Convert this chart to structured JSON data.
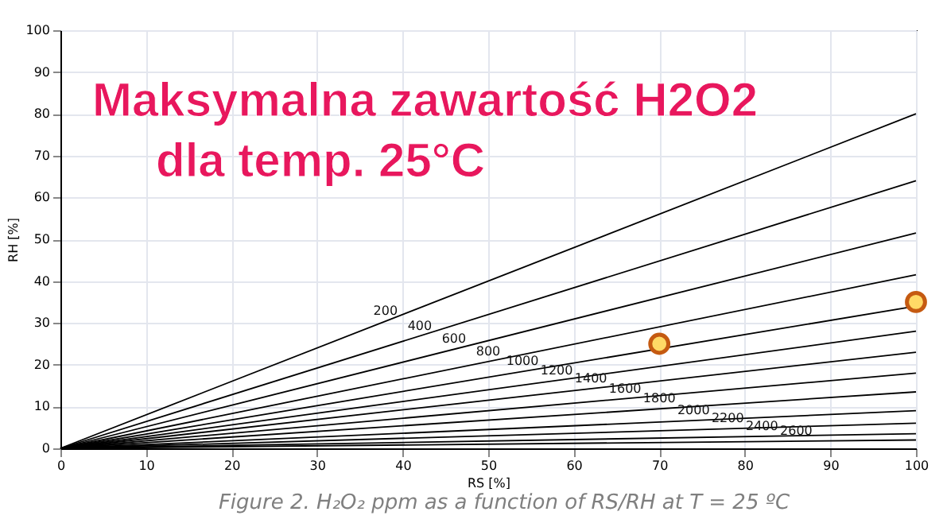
{
  "chart_data": {
    "type": "line",
    "title": "Maksymalna zawartość H2O2",
    "subtitle": "dla temp. 25°C",
    "xlabel": "RS [%]",
    "ylabel": "RH [%]",
    "annotations": [
      "Figure 2. H₂O₂ ppm as a function of RS/RH at T = 25 ºC"
    ],
    "xlim": [
      0,
      100
    ],
    "ylim": [
      0,
      100
    ],
    "xticks": [
      0,
      10,
      20,
      30,
      40,
      50,
      60,
      70,
      80,
      90,
      100
    ],
    "yticks": [
      0,
      10,
      20,
      30,
      40,
      50,
      60,
      70,
      80,
      90,
      100
    ],
    "grid": true,
    "line_style": "solid",
    "marker": "none",
    "series": [
      {
        "name": "200",
        "color": "#000000",
        "x": [
          0,
          100
        ],
        "values": [
          0,
          80
        ]
      },
      {
        "name": "400",
        "color": "#000000",
        "x": [
          0,
          100
        ],
        "values": [
          0,
          64
        ]
      },
      {
        "name": "600",
        "color": "#000000",
        "x": [
          0,
          100
        ],
        "values": [
          0,
          51.5
        ]
      },
      {
        "name": "800",
        "color": "#000000",
        "x": [
          0,
          100
        ],
        "values": [
          0,
          41.5
        ]
      },
      {
        "name": "1000",
        "color": "#000000",
        "x": [
          0,
          100
        ],
        "values": [
          0,
          34
        ]
      },
      {
        "name": "1200",
        "color": "#000000",
        "x": [
          0,
          100
        ],
        "values": [
          0,
          28
        ]
      },
      {
        "name": "1400",
        "color": "#000000",
        "x": [
          0,
          100
        ],
        "values": [
          0,
          23
        ]
      },
      {
        "name": "1600",
        "color": "#000000",
        "x": [
          0,
          100
        ],
        "values": [
          0,
          18
        ]
      },
      {
        "name": "1800",
        "color": "#000000",
        "x": [
          0,
          100
        ],
        "values": [
          0,
          13.5
        ]
      },
      {
        "name": "2000",
        "color": "#000000",
        "x": [
          0,
          100
        ],
        "values": [
          0,
          9
        ]
      },
      {
        "name": "2200",
        "color": "#000000",
        "x": [
          0,
          100
        ],
        "values": [
          0,
          6
        ]
      },
      {
        "name": "2400",
        "color": "#000000",
        "x": [
          0,
          100
        ],
        "values": [
          0,
          3.5
        ]
      },
      {
        "name": "2600",
        "color": "#000000",
        "x": [
          0,
          100
        ],
        "values": [
          0,
          2
        ]
      },
      {
        "type": "scatter",
        "marker": "circle",
        "color": "#ffd966",
        "x": [
          70,
          100
        ],
        "values": [
          25,
          35
        ]
      }
    ]
  }
}
